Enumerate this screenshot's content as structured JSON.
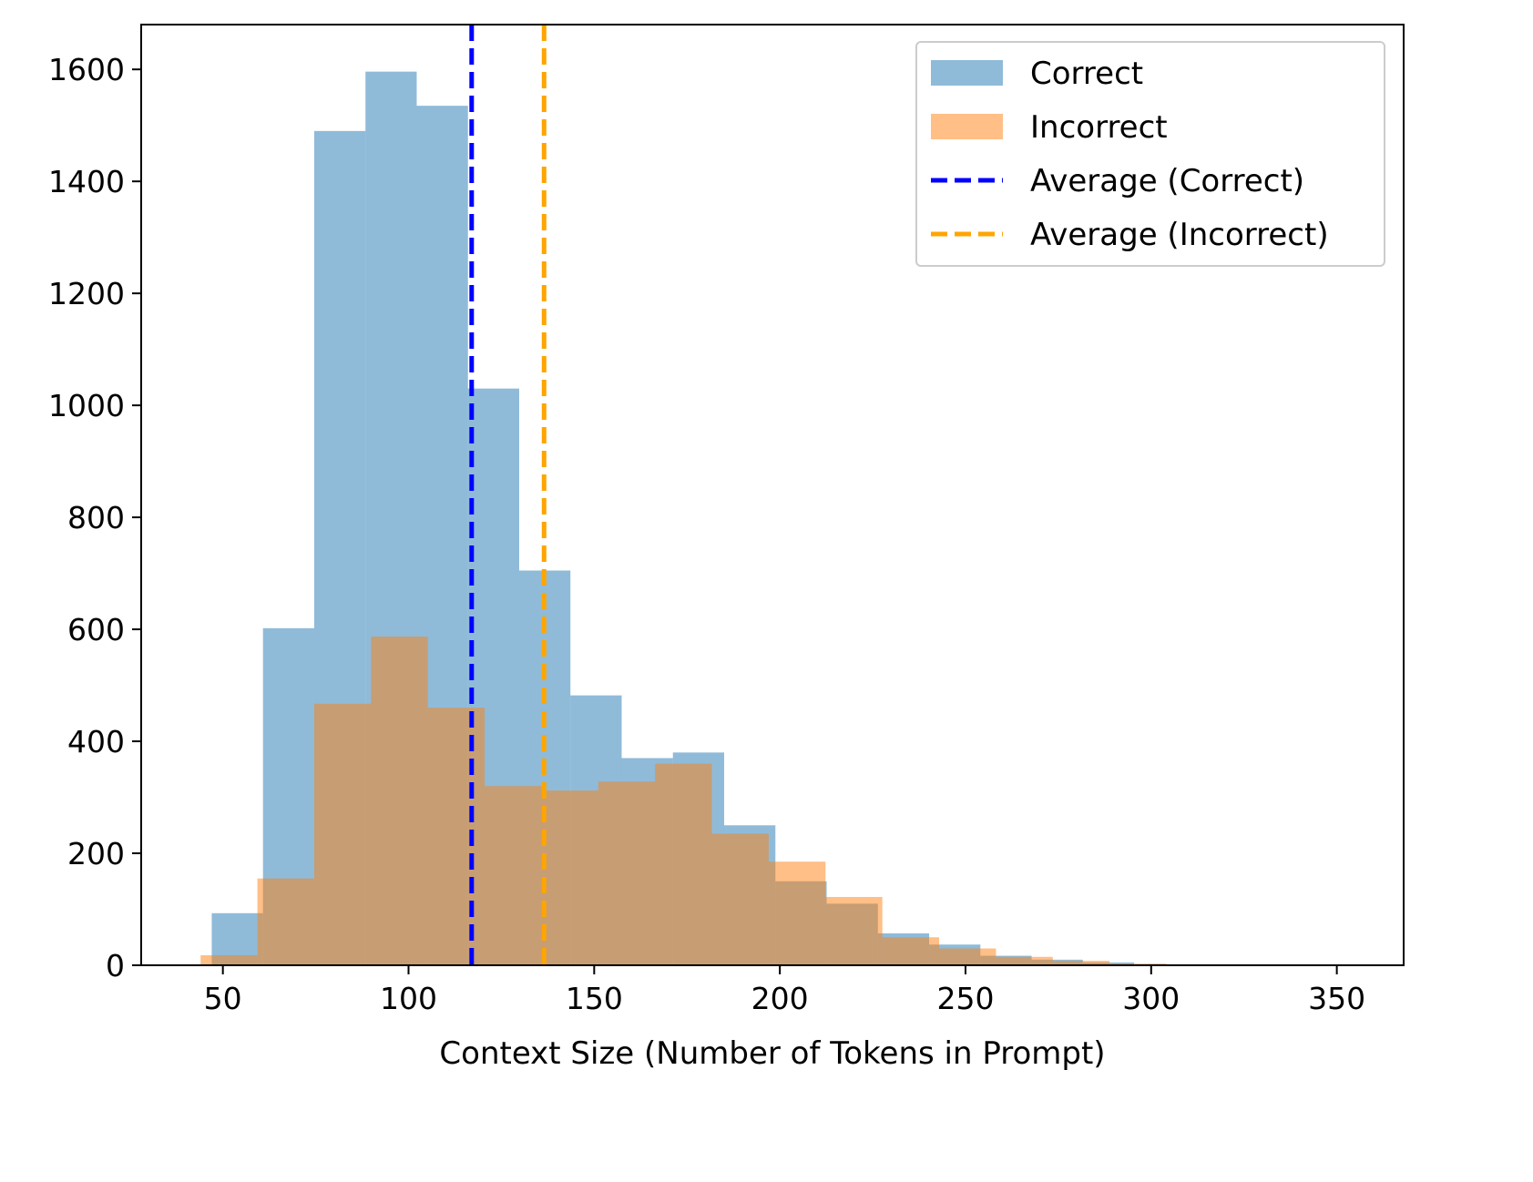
{
  "chart_data": {
    "type": "histogram",
    "title": "",
    "xlabel": "Context Size (Number of Tokens in Prompt)",
    "ylabel": "",
    "xlim": [
      28,
      368
    ],
    "ylim": [
      0,
      1680
    ],
    "x_ticks": [
      50,
      100,
      150,
      200,
      250,
      300,
      350
    ],
    "y_ticks": [
      0,
      200,
      400,
      600,
      800,
      1000,
      1200,
      1400,
      1600
    ],
    "grid": false,
    "legend_position": "top-right",
    "series": [
      {
        "name": "Correct",
        "color": "#1f77b4",
        "opacity": 0.5,
        "bins": [
          {
            "x0": 47.0,
            "x1": 60.8,
            "count": 93
          },
          {
            "x0": 60.8,
            "x1": 74.6,
            "count": 602
          },
          {
            "x0": 74.6,
            "x1": 88.4,
            "count": 1490
          },
          {
            "x0": 88.4,
            "x1": 102.2,
            "count": 1596
          },
          {
            "x0": 102.2,
            "x1": 116.0,
            "count": 1535
          },
          {
            "x0": 116.0,
            "x1": 129.8,
            "count": 1030
          },
          {
            "x0": 129.8,
            "x1": 143.6,
            "count": 705
          },
          {
            "x0": 143.6,
            "x1": 157.4,
            "count": 482
          },
          {
            "x0": 157.4,
            "x1": 171.2,
            "count": 370
          },
          {
            "x0": 171.2,
            "x1": 185.0,
            "count": 380
          },
          {
            "x0": 185.0,
            "x1": 198.8,
            "count": 250
          },
          {
            "x0": 198.8,
            "x1": 212.6,
            "count": 150
          },
          {
            "x0": 212.6,
            "x1": 226.4,
            "count": 110
          },
          {
            "x0": 226.4,
            "x1": 240.2,
            "count": 57
          },
          {
            "x0": 240.2,
            "x1": 254.0,
            "count": 37
          },
          {
            "x0": 254.0,
            "x1": 267.8,
            "count": 17
          },
          {
            "x0": 267.8,
            "x1": 281.6,
            "count": 10
          },
          {
            "x0": 281.6,
            "x1": 295.4,
            "count": 5
          },
          {
            "x0": 295.4,
            "x1": 309.2,
            "count": 0
          },
          {
            "x0": 309.2,
            "x1": 323.0,
            "count": 0
          },
          {
            "x0": 323.0,
            "x1": 336.8,
            "count": 0
          },
          {
            "x0": 336.8,
            "x1": 350.6,
            "count": 1
          }
        ]
      },
      {
        "name": "Incorrect",
        "color": "#ff7f0e",
        "opacity": 0.5,
        "bins": [
          {
            "x0": 44.0,
            "x1": 59.3,
            "count": 18
          },
          {
            "x0": 59.3,
            "x1": 74.6,
            "count": 155
          },
          {
            "x0": 74.6,
            "x1": 89.9,
            "count": 467
          },
          {
            "x0": 89.9,
            "x1": 105.2,
            "count": 587
          },
          {
            "x0": 105.2,
            "x1": 120.5,
            "count": 460
          },
          {
            "x0": 120.5,
            "x1": 135.8,
            "count": 320
          },
          {
            "x0": 135.8,
            "x1": 151.1,
            "count": 312
          },
          {
            "x0": 151.1,
            "x1": 166.4,
            "count": 328
          },
          {
            "x0": 166.4,
            "x1": 181.7,
            "count": 360
          },
          {
            "x0": 181.7,
            "x1": 197.0,
            "count": 235
          },
          {
            "x0": 197.0,
            "x1": 212.3,
            "count": 185
          },
          {
            "x0": 212.3,
            "x1": 227.6,
            "count": 122
          },
          {
            "x0": 227.6,
            "x1": 242.9,
            "count": 50
          },
          {
            "x0": 242.9,
            "x1": 258.2,
            "count": 30
          },
          {
            "x0": 258.2,
            "x1": 273.5,
            "count": 15
          },
          {
            "x0": 273.5,
            "x1": 288.8,
            "count": 8
          },
          {
            "x0": 288.8,
            "x1": 304.1,
            "count": 3
          },
          {
            "x0": 304.1,
            "x1": 319.4,
            "count": 1
          }
        ]
      }
    ],
    "vlines": [
      {
        "name": "Average (Correct)",
        "x": 117,
        "color": "#0000ff",
        "style": "dashed"
      },
      {
        "name": "Average (Incorrect)",
        "x": 136.5,
        "color": "#ffa500",
        "style": "dashed"
      }
    ]
  }
}
